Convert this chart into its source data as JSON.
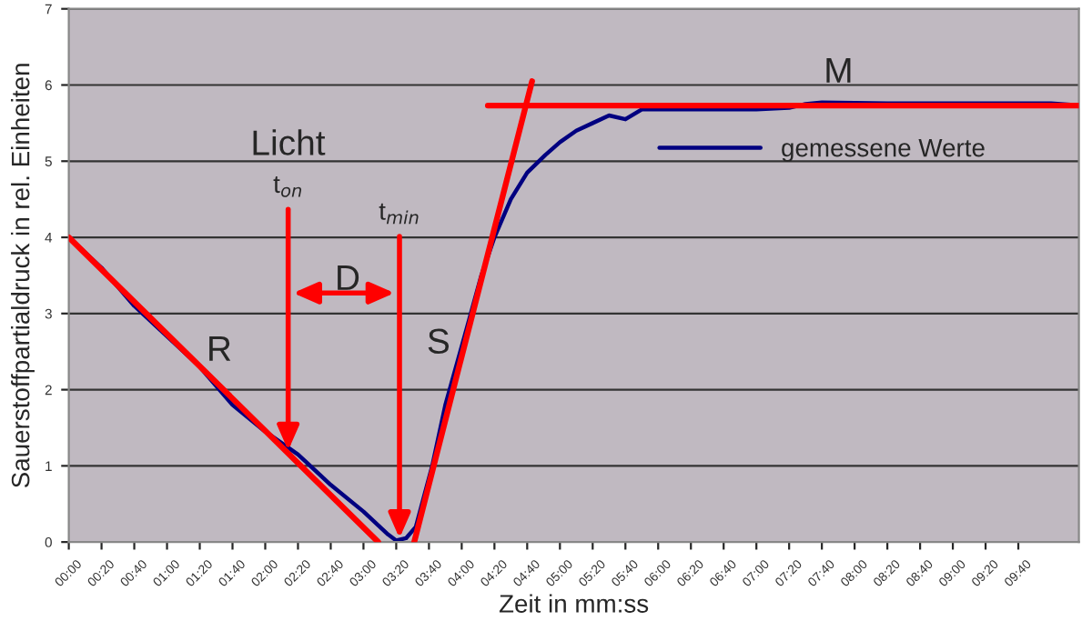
{
  "chart_data": {
    "type": "line",
    "xlabel": "Zeit in mm:ss",
    "ylabel": "Sauerstoffpartialdruck in rel. Einheiten",
    "xlim": [
      0,
      617
    ],
    "ylim": [
      0,
      7
    ],
    "yticks": [
      0,
      1,
      2,
      3,
      4,
      5,
      6,
      7
    ],
    "xticks": [
      {
        "value": 0,
        "label": "00:00"
      },
      {
        "value": 20,
        "label": "00:20"
      },
      {
        "value": 40,
        "label": "00:40"
      },
      {
        "value": 60,
        "label": "01:00"
      },
      {
        "value": 80,
        "label": "01:20"
      },
      {
        "value": 100,
        "label": "01:40"
      },
      {
        "value": 120,
        "label": "02:00"
      },
      {
        "value": 140,
        "label": "02:20"
      },
      {
        "value": 160,
        "label": "02:40"
      },
      {
        "value": 180,
        "label": "03:00"
      },
      {
        "value": 200,
        "label": "03:20"
      },
      {
        "value": 220,
        "label": "03:40"
      },
      {
        "value": 240,
        "label": "04:00"
      },
      {
        "value": 260,
        "label": "04:20"
      },
      {
        "value": 280,
        "label": "04:40"
      },
      {
        "value": 300,
        "label": "05:00"
      },
      {
        "value": 320,
        "label": "05:20"
      },
      {
        "value": 340,
        "label": "05:40"
      },
      {
        "value": 360,
        "label": "06:00"
      },
      {
        "value": 380,
        "label": "06:20"
      },
      {
        "value": 400,
        "label": "06:40"
      },
      {
        "value": 420,
        "label": "07:00"
      },
      {
        "value": 440,
        "label": "07:20"
      },
      {
        "value": 460,
        "label": "07:40"
      },
      {
        "value": 480,
        "label": "08:00"
      },
      {
        "value": 500,
        "label": "08:20"
      },
      {
        "value": 520,
        "label": "08:40"
      },
      {
        "value": 540,
        "label": "09:00"
      },
      {
        "value": 560,
        "label": "09:20"
      },
      {
        "value": 580,
        "label": "09:40"
      }
    ],
    "grid": "y",
    "legend": "right",
    "line_style": "solid",
    "marker": "none",
    "series": [
      {
        "name": "gemessene Werte",
        "color": "#000080",
        "x": [
          0,
          20,
          40,
          60,
          80,
          100,
          120,
          140,
          160,
          180,
          195,
          200,
          206,
          212,
          222,
          230,
          243,
          252,
          260,
          270,
          280,
          291,
          300,
          310,
          320,
          330,
          340,
          350,
          380,
          420,
          440,
          450,
          460,
          500,
          550,
          600,
          612
        ],
        "values": [
          4.0,
          3.6,
          3.1,
          2.7,
          2.3,
          1.8,
          1.45,
          1.15,
          0.75,
          0.4,
          0.1,
          0.02,
          0.05,
          0.2,
          1.0,
          1.8,
          2.8,
          3.5,
          4.0,
          4.5,
          4.85,
          5.08,
          5.25,
          5.4,
          5.5,
          5.6,
          5.55,
          5.68,
          5.68,
          5.68,
          5.7,
          5.75,
          5.77,
          5.76,
          5.76,
          5.76,
          5.74
        ]
      },
      {
        "color": "#ff0000",
        "x": [
          0,
          189
        ],
        "values": [
          4.0,
          0
        ]
      },
      {
        "color": "#ff0000",
        "x": [
          211,
          283
        ],
        "values": [
          0,
          6.05
        ]
      },
      {
        "color": "#ff0000",
        "x": [
          256,
          617
        ],
        "values": [
          5.73,
          5.73
        ]
      }
    ],
    "annotations": [
      "R",
      "M",
      "Licht",
      "D",
      "S",
      {
        "text": "t$_{on}$",
        "x": 134,
        "y": 1.2
      },
      {
        "text": "t$_{min}$",
        "x": 202,
        "y": 0.05
      }
    ]
  }
}
